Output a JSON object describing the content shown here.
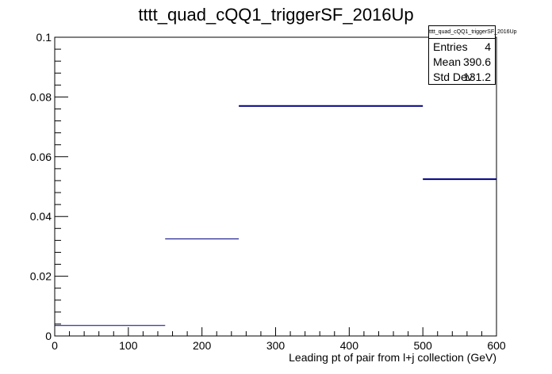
{
  "chart_data": {
    "type": "step-histogram",
    "title": "tttt_quad_cQQ1_triggerSF_2016Up",
    "xlabel": "Leading pt of pair from l+j collection (GeV)",
    "ylabel": "",
    "xlim": [
      0,
      600
    ],
    "ylim": [
      0,
      0.1
    ],
    "x_ticks": [
      "0",
      "100",
      "200",
      "300",
      "400",
      "500",
      "600"
    ],
    "y_ticks": [
      "0",
      "0.02",
      "0.04",
      "0.06",
      "0.08",
      "0.1"
    ],
    "bins": [
      {
        "low": 0,
        "high": 150,
        "value": 0.0035
      },
      {
        "low": 150,
        "high": 250,
        "value": 0.0325
      },
      {
        "low": 250,
        "high": 500,
        "value": 0.077
      },
      {
        "low": 500,
        "high": 600,
        "value": 0.0525
      }
    ],
    "grid": false,
    "colors": {
      "line": "#000080",
      "frame": "#000000"
    }
  },
  "stats": {
    "title": "tttt_quad_cQQ1_triggerSF_2016Up",
    "rows": [
      {
        "label": "Entries",
        "value": "4"
      },
      {
        "label": "Mean",
        "value": "390.6"
      },
      {
        "label": "Std Dev",
        "value": "131.2"
      }
    ]
  }
}
